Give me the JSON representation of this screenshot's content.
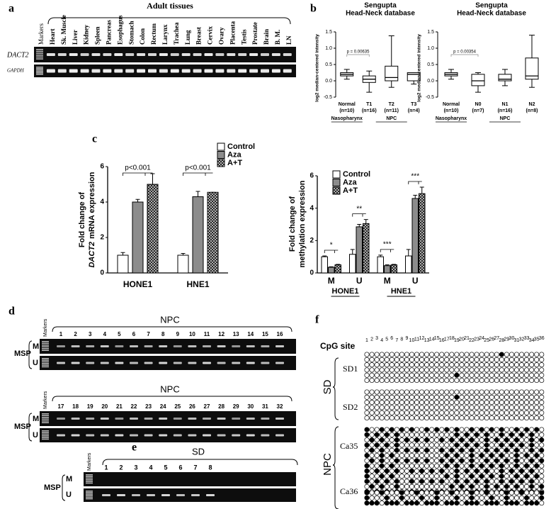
{
  "panels": {
    "a": {
      "label": "a",
      "heading": "Adult tissues",
      "lanes": [
        "Markers",
        "Heart",
        "Sk. Muscle",
        "Liver",
        "Kidney",
        "Spleen",
        "Pancreas",
        "Esophagus",
        "Stomach",
        "Colon",
        "Rectum",
        "Larynx",
        "Trachea",
        "Lung",
        "Breast",
        "Cervix",
        "Ovary",
        "Placenta",
        "Testis",
        "Prostate",
        "Brain",
        "B. M.",
        "LN"
      ],
      "rows": [
        "DACT2",
        "GAPDH"
      ]
    },
    "b": {
      "label": "b"
    },
    "c": {
      "label": "c"
    },
    "d": {
      "label": "d",
      "markers": "Markers",
      "assay": "MSP",
      "rows": [
        "M",
        "U"
      ],
      "groups": [
        {
          "heading": "NPC",
          "lanes": [
            1,
            2,
            3,
            4,
            5,
            6,
            7,
            8,
            9,
            10,
            11,
            12,
            13,
            14,
            15,
            16
          ]
        },
        {
          "heading": "NPC",
          "lanes": [
            17,
            18,
            19,
            20,
            21,
            22,
            23,
            24,
            25,
            26,
            27,
            28,
            29,
            30,
            31,
            32
          ]
        }
      ]
    },
    "e": {
      "label": "e",
      "heading": "SD",
      "markers": "Markers",
      "assay": "MSP",
      "rows": [
        "M",
        "U"
      ],
      "lanes": [
        1,
        2,
        3,
        4,
        5,
        6,
        7,
        8
      ]
    },
    "f": {
      "label": "f",
      "axis": "CpG site",
      "sites": [
        1,
        2,
        3,
        4,
        5,
        6,
        7,
        8,
        9,
        10,
        11,
        12,
        13,
        14,
        15,
        16,
        17,
        18,
        19,
        20,
        21,
        22,
        23,
        24,
        25,
        26,
        27,
        28,
        29,
        30,
        31,
        32,
        33,
        34,
        35,
        36
      ],
      "groups": [
        {
          "name": "SD",
          "samples": [
            "SD1",
            "SD2"
          ]
        },
        {
          "name": "NPC",
          "samples": [
            "Ca35",
            "Ca36"
          ]
        }
      ]
    }
  },
  "chart_data": [
    {
      "type": "box",
      "title": "Sengupta",
      "subtitle": "Head-Neck database",
      "ylabel": "log2 median-centered intensity",
      "categories": [
        "Normal",
        "T1",
        "T2",
        "T3"
      ],
      "counts": [
        "(n=10)",
        "(n=16)",
        "(n=11)",
        "(n=4)"
      ],
      "group_labels": [
        "Nasopharynx",
        null,
        "NPC",
        null
      ],
      "annotation": "p = 0.00635",
      "color": "#ffffff",
      "ylim": [
        -0.5,
        1.5
      ],
      "yticks": [
        -0.5,
        {
          "value": 0,
          "label": "0.0"
        },
        0.5,
        {
          "value": 1,
          "label": "1.0"
        },
        1.5
      ],
      "boxes": [
        {
          "min": 0.05,
          "q1": 0.15,
          "median": 0.2,
          "q3": 0.25,
          "max": 0.35
        },
        {
          "min": -0.35,
          "q1": -0.05,
          "median": 0.05,
          "q3": 0.15,
          "max": 0.3
        },
        {
          "min": -0.2,
          "q1": 0.0,
          "median": 0.1,
          "q3": 0.45,
          "max": 1.38
        },
        {
          "min": -0.1,
          "q1": 0.0,
          "median": 0.2,
          "q3": 0.25,
          "max": 0.25
        }
      ]
    },
    {
      "type": "box",
      "title": "Sengupta",
      "subtitle": "Head-Neck database",
      "ylabel": "log2 median-centered intensity",
      "categories": [
        "Normal",
        "N0",
        "N1",
        "N2"
      ],
      "counts": [
        "(n=10)",
        "(n=7)",
        "(n=16)",
        "(n=8)"
      ],
      "group_labels": [
        "Nasopharynx",
        null,
        "NPC",
        null
      ],
      "annotation": "p = 0.00354",
      "color": "#ffffff",
      "ylim": [
        -0.5,
        1.5
      ],
      "yticks": [
        -0.5,
        {
          "value": 0,
          "label": "0.0"
        },
        0.5,
        {
          "value": 1,
          "label": "1.0"
        },
        1.5
      ],
      "boxes": [
        {
          "min": 0.05,
          "q1": 0.15,
          "median": 0.2,
          "q3": 0.25,
          "max": 0.35
        },
        {
          "min": -0.35,
          "q1": -0.15,
          "median": 0.0,
          "q3": 0.2,
          "max": 0.25
        },
        {
          "min": -0.15,
          "q1": 0.0,
          "median": 0.05,
          "q3": 0.2,
          "max": 0.35
        },
        {
          "min": -0.2,
          "q1": 0.05,
          "median": 0.15,
          "q3": 0.7,
          "max": 1.4
        }
      ]
    },
    {
      "type": "bar",
      "ylabel": [
        "Fold change of",
        "DACT2",
        "mRNA expression"
      ],
      "categories": [
        "HONE1",
        "HNE1"
      ],
      "annotations": [
        "p<0.001",
        "p<0.001"
      ],
      "legend": "top-right",
      "ylim": [
        0,
        6
      ],
      "yticks": [
        0,
        2,
        4,
        6
      ],
      "series": [
        {
          "name": "Control",
          "color": "#ffffff",
          "values": [
            1.0,
            1.0
          ],
          "errors": [
            0.15,
            0.1
          ]
        },
        {
          "name": "Aza",
          "color": "#8c8c8c",
          "values": [
            4.0,
            4.3
          ],
          "errors": [
            0.15,
            0.3
          ]
        },
        {
          "name": "A+T",
          "color": "#333333",
          "hatch": true,
          "values": [
            5.0,
            4.55
          ],
          "errors": [
            0.6,
            0.0
          ]
        }
      ]
    },
    {
      "type": "bar",
      "ylabel": [
        "Fold change of",
        "methylation expression"
      ],
      "categories": [
        "M",
        "U",
        "M",
        "U"
      ],
      "groups": [
        "HONE1",
        "HNE1"
      ],
      "annotations": [
        "*",
        "**",
        "***",
        "***"
      ],
      "legend": "top-left",
      "ylim": [
        0,
        6
      ],
      "yticks": [
        0,
        2,
        4,
        6
      ],
      "series": [
        {
          "name": "Control",
          "color": "#ffffff",
          "values": [
            1.0,
            1.15,
            1.0,
            1.05
          ],
          "errors": [
            0.05,
            0.3,
            0.1,
            0.4
          ]
        },
        {
          "name": "Aza",
          "color": "#8c8c8c",
          "values": [
            0.35,
            2.85,
            0.45,
            4.6
          ],
          "errors": [
            0.03,
            0.15,
            0.05,
            0.2
          ]
        },
        {
          "name": "A+T",
          "color": "#333333",
          "hatch": true,
          "values": [
            0.5,
            3.05,
            0.5,
            4.9
          ],
          "errors": [
            0.03,
            0.25,
            0.03,
            0.4
          ]
        }
      ]
    }
  ]
}
